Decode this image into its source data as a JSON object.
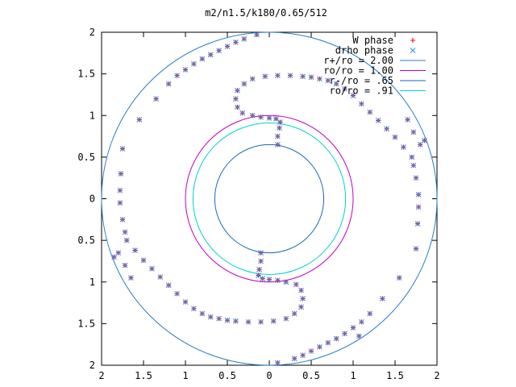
{
  "chart_data": {
    "type": "scatter",
    "title": "m2/n1.5/k180/0.65/512",
    "xlim": [
      -2,
      2
    ],
    "ylim": [
      -2,
      2
    ],
    "x_tick_labels": [
      "2",
      "1.5",
      "1",
      "0.5",
      "0",
      "0.5",
      "1",
      "1.5",
      "2"
    ],
    "y_tick_labels": [
      "2",
      "1.5",
      "1",
      "0.5",
      "0",
      "0.5",
      "1",
      "1.5",
      "2"
    ],
    "x_tick_values": [
      -2,
      -1.5,
      -1,
      -0.5,
      0,
      0.5,
      1,
      1.5,
      2
    ],
    "y_tick_values": [
      2,
      1.5,
      1,
      0.5,
      0,
      -0.5,
      -1,
      -1.5,
      -2
    ],
    "grid": false,
    "legend_position": "top-right",
    "legend": [
      {
        "label": "W phase",
        "kind": "plus",
        "color": "#ff0000"
      },
      {
        "label": "drho phase",
        "kind": "cross",
        "color": "#1e90ff"
      },
      {
        "label": "r+/ro = 2.00",
        "kind": "line",
        "color": "#2a7cc7"
      },
      {
        "label": "ro/ro = 1.00",
        "kind": "line",
        "color": "#c000c0"
      },
      {
        "label": "r-/ro = .65",
        "kind": "line",
        "color": "#1a6ab8"
      },
      {
        "label": "ro/ro = .91",
        "kind": "line",
        "color": "#00d0d0"
      }
    ],
    "circles": [
      {
        "name": "r+/ro = 2.00",
        "r": 2.0,
        "color": "#2a7cc7"
      },
      {
        "name": "ro/ro = 1.00",
        "r": 1.0,
        "color": "#c000c0"
      },
      {
        "name": "r-/ro = .65",
        "r": 0.65,
        "color": "#1a6ab8"
      },
      {
        "name": "ro/ro = .91",
        "r": 0.91,
        "color": "#00d0d0"
      }
    ],
    "series": [
      {
        "name": "W phase",
        "marker": "plus",
        "color": "#ff0000",
        "points": [
          [
            0.1,
            0.65
          ],
          [
            0.1,
            0.75
          ],
          [
            0.12,
            0.85
          ],
          [
            0.13,
            0.92
          ],
          [
            0.08,
            0.96
          ],
          [
            0.0,
            0.97
          ],
          [
            -0.1,
            0.98
          ],
          [
            -0.2,
            1.0
          ],
          [
            -0.32,
            1.03
          ],
          [
            -0.38,
            1.1
          ],
          [
            -0.4,
            1.2
          ],
          [
            -0.38,
            1.3
          ],
          [
            -0.3,
            1.38
          ],
          [
            -0.2,
            1.44
          ],
          [
            -0.05,
            1.47
          ],
          [
            0.1,
            1.48
          ],
          [
            0.25,
            1.48
          ],
          [
            0.4,
            1.47
          ],
          [
            0.5,
            1.46
          ],
          [
            0.6,
            1.44
          ],
          [
            0.7,
            1.42
          ],
          [
            0.8,
            1.38
          ],
          [
            0.9,
            1.32
          ],
          [
            1.0,
            1.24
          ],
          [
            1.1,
            1.14
          ],
          [
            1.2,
            1.04
          ],
          [
            1.3,
            0.94
          ],
          [
            1.4,
            0.84
          ],
          [
            1.5,
            0.74
          ],
          [
            1.6,
            0.62
          ],
          [
            1.7,
            0.5
          ],
          [
            1.72,
            0.4
          ],
          [
            1.75,
            0.25
          ],
          [
            1.78,
            0.05
          ],
          [
            1.78,
            -0.1
          ],
          [
            1.77,
            -0.3
          ],
          [
            1.75,
            -0.6
          ],
          [
            1.55,
            -0.95
          ],
          [
            1.35,
            -1.2
          ],
          [
            1.2,
            -1.38
          ],
          [
            1.1,
            -1.48
          ],
          [
            1.0,
            -1.55
          ],
          [
            0.9,
            -1.62
          ],
          [
            0.8,
            -1.68
          ],
          [
            0.7,
            -1.73
          ],
          [
            0.6,
            -1.78
          ],
          [
            0.5,
            -1.83
          ],
          [
            0.4,
            -1.88
          ],
          [
            0.3,
            -1.92
          ],
          [
            1.65,
            0.95
          ],
          [
            1.72,
            0.8
          ],
          [
            1.8,
            0.65
          ],
          [
            1.85,
            0.7
          ],
          [
            -0.1,
            -0.65
          ],
          [
            -0.1,
            -0.75
          ],
          [
            -0.12,
            -0.85
          ],
          [
            -0.13,
            -0.92
          ],
          [
            -0.08,
            -0.96
          ],
          [
            0.0,
            -0.97
          ],
          [
            0.1,
            -0.98
          ],
          [
            0.2,
            -1.0
          ],
          [
            0.32,
            -1.03
          ],
          [
            0.38,
            -1.1
          ],
          [
            0.4,
            -1.2
          ],
          [
            0.38,
            -1.3
          ],
          [
            0.3,
            -1.38
          ],
          [
            0.2,
            -1.44
          ],
          [
            0.05,
            -1.47
          ],
          [
            -0.1,
            -1.48
          ],
          [
            -0.25,
            -1.48
          ],
          [
            -0.4,
            -1.47
          ],
          [
            -0.5,
            -1.46
          ],
          [
            -0.6,
            -1.44
          ],
          [
            -0.7,
            -1.42
          ],
          [
            -0.8,
            -1.38
          ],
          [
            -0.9,
            -1.32
          ],
          [
            -1.0,
            -1.24
          ],
          [
            -1.1,
            -1.14
          ],
          [
            -1.2,
            -1.04
          ],
          [
            -1.3,
            -0.94
          ],
          [
            -1.4,
            -0.84
          ],
          [
            -1.5,
            -0.74
          ],
          [
            -1.6,
            -0.62
          ],
          [
            -1.7,
            -0.5
          ],
          [
            -1.72,
            -0.4
          ],
          [
            -1.75,
            -0.25
          ],
          [
            -1.78,
            -0.05
          ],
          [
            -1.78,
            0.1
          ],
          [
            -1.77,
            0.3
          ],
          [
            -1.75,
            0.6
          ],
          [
            -1.55,
            0.95
          ],
          [
            -1.35,
            1.2
          ],
          [
            -1.2,
            1.38
          ],
          [
            -1.1,
            1.48
          ],
          [
            -1.0,
            1.55
          ],
          [
            -0.9,
            1.62
          ],
          [
            -0.8,
            1.68
          ],
          [
            -0.7,
            1.73
          ],
          [
            -0.6,
            1.78
          ],
          [
            -0.5,
            1.83
          ],
          [
            -0.4,
            1.88
          ],
          [
            -0.3,
            1.92
          ],
          [
            -1.65,
            -0.95
          ],
          [
            -1.72,
            -0.8
          ],
          [
            -1.8,
            -0.65
          ],
          [
            -1.85,
            -0.7
          ],
          [
            1.07,
            -1.65
          ],
          [
            0.1,
            -1.97
          ],
          [
            -0.15,
            1.97
          ]
        ]
      },
      {
        "name": "drho phase",
        "marker": "cross",
        "color": "#1e90ff",
        "points": [
          [
            0.1,
            0.65
          ],
          [
            0.1,
            0.75
          ],
          [
            0.12,
            0.85
          ],
          [
            0.13,
            0.92
          ],
          [
            0.08,
            0.96
          ],
          [
            0.0,
            0.97
          ],
          [
            -0.1,
            0.98
          ],
          [
            -0.2,
            1.0
          ],
          [
            -0.32,
            1.03
          ],
          [
            -0.38,
            1.1
          ],
          [
            -0.4,
            1.2
          ],
          [
            -0.38,
            1.3
          ],
          [
            -0.3,
            1.38
          ],
          [
            -0.2,
            1.44
          ],
          [
            -0.05,
            1.47
          ],
          [
            0.1,
            1.48
          ],
          [
            0.25,
            1.48
          ],
          [
            0.4,
            1.47
          ],
          [
            0.5,
            1.46
          ],
          [
            0.6,
            1.44
          ],
          [
            0.7,
            1.42
          ],
          [
            0.8,
            1.38
          ],
          [
            0.9,
            1.32
          ],
          [
            1.0,
            1.24
          ],
          [
            1.1,
            1.14
          ],
          [
            1.2,
            1.04
          ],
          [
            1.3,
            0.94
          ],
          [
            1.4,
            0.84
          ],
          [
            1.5,
            0.74
          ],
          [
            1.6,
            0.62
          ],
          [
            1.7,
            0.5
          ],
          [
            1.72,
            0.4
          ],
          [
            1.75,
            0.25
          ],
          [
            1.78,
            0.05
          ],
          [
            1.78,
            -0.1
          ],
          [
            1.77,
            -0.3
          ],
          [
            1.75,
            -0.6
          ],
          [
            1.55,
            -0.95
          ],
          [
            1.35,
            -1.2
          ],
          [
            1.2,
            -1.38
          ],
          [
            1.1,
            -1.48
          ],
          [
            1.0,
            -1.55
          ],
          [
            0.9,
            -1.62
          ],
          [
            0.8,
            -1.68
          ],
          [
            0.7,
            -1.73
          ],
          [
            0.6,
            -1.78
          ],
          [
            0.5,
            -1.83
          ],
          [
            0.4,
            -1.88
          ],
          [
            0.3,
            -1.92
          ],
          [
            1.65,
            0.95
          ],
          [
            1.72,
            0.8
          ],
          [
            1.8,
            0.65
          ],
          [
            1.85,
            0.7
          ],
          [
            -0.1,
            -0.65
          ],
          [
            -0.1,
            -0.75
          ],
          [
            -0.12,
            -0.85
          ],
          [
            -0.13,
            -0.92
          ],
          [
            -0.08,
            -0.96
          ],
          [
            0.0,
            -0.97
          ],
          [
            0.1,
            -0.98
          ],
          [
            0.2,
            -1.0
          ],
          [
            0.32,
            -1.03
          ],
          [
            0.38,
            -1.1
          ],
          [
            0.4,
            -1.2
          ],
          [
            0.38,
            -1.3
          ],
          [
            0.3,
            -1.38
          ],
          [
            0.2,
            -1.44
          ],
          [
            0.05,
            -1.47
          ],
          [
            -0.1,
            -1.48
          ],
          [
            -0.25,
            -1.48
          ],
          [
            -0.4,
            -1.47
          ],
          [
            -0.5,
            -1.46
          ],
          [
            -0.6,
            -1.44
          ],
          [
            -0.7,
            -1.42
          ],
          [
            -0.8,
            -1.38
          ],
          [
            -0.9,
            -1.32
          ],
          [
            -1.0,
            -1.24
          ],
          [
            -1.1,
            -1.14
          ],
          [
            -1.2,
            -1.04
          ],
          [
            -1.3,
            -0.94
          ],
          [
            -1.4,
            -0.84
          ],
          [
            -1.5,
            -0.74
          ],
          [
            -1.6,
            -0.62
          ],
          [
            -1.7,
            -0.5
          ],
          [
            -1.72,
            -0.4
          ],
          [
            -1.75,
            -0.25
          ],
          [
            -1.78,
            -0.05
          ],
          [
            -1.78,
            0.1
          ],
          [
            -1.77,
            0.3
          ],
          [
            -1.75,
            0.6
          ],
          [
            -1.55,
            0.95
          ],
          [
            -1.35,
            1.2
          ],
          [
            -1.2,
            1.38
          ],
          [
            -1.1,
            1.48
          ],
          [
            -1.0,
            1.55
          ],
          [
            -0.9,
            1.62
          ],
          [
            -0.8,
            1.68
          ],
          [
            -0.7,
            1.73
          ],
          [
            -0.6,
            1.78
          ],
          [
            -0.5,
            1.83
          ],
          [
            -0.4,
            1.88
          ],
          [
            -0.3,
            1.92
          ],
          [
            -1.65,
            -0.95
          ],
          [
            -1.72,
            -0.8
          ],
          [
            -1.8,
            -0.65
          ],
          [
            -1.85,
            -0.7
          ],
          [
            1.07,
            -1.65
          ],
          [
            0.1,
            -1.97
          ],
          [
            -0.15,
            1.97
          ]
        ]
      }
    ]
  }
}
